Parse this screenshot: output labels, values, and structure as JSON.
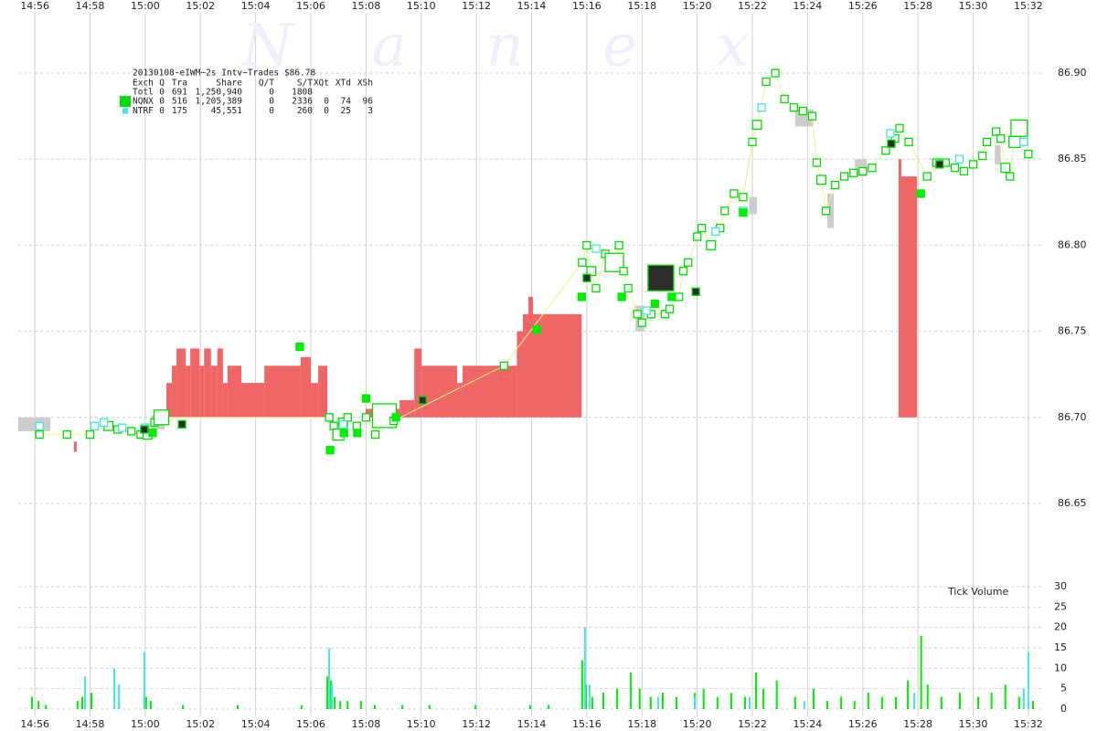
{
  "chart_data": [
    {
      "type": "trades",
      "watermark": "N a n e x",
      "xlim": [
        "14:55:24",
        "15:32:30"
      ],
      "xticks": [
        "14:56",
        "14:58",
        "15:00",
        "15:02",
        "15:04",
        "15:06",
        "15:08",
        "15:10",
        "15:12",
        "15:14",
        "15:16",
        "15:18",
        "15:20",
        "15:22",
        "15:24",
        "15:26",
        "15:28",
        "15:30",
        "15:32"
      ],
      "ylim": [
        86.6,
        86.93
      ],
      "yticks": [
        86.65,
        {
          "value": 86.7,
          "label": "86.70"
        },
        86.75,
        {
          "value": 86.8,
          "label": "86.80"
        },
        86.85,
        {
          "value": 86.9,
          "label": "86.90"
        }
      ],
      "grid": true,
      "info": {
        "title": "20130108-eIWM~2s Intv~Trades $86.78",
        "header": [
          "Exch",
          "Q",
          "Tra",
          "Share",
          "Q/T",
          "S/T",
          "XQt",
          "XTd",
          "XSh"
        ],
        "total": [
          "Totl",
          "0",
          "691",
          "1,250,940",
          "0",
          "1808"
        ]
      },
      "quotes": [
        {
          "color": "#cccccc",
          "x": [
            "14:55:24",
            "14:56:34",
            "15:00:13",
            "15:00:42",
            "15:17:46",
            "15:18:05",
            "15:21:53",
            "15:22:10",
            "15:23:33",
            "15:24:13",
            "15:24:43",
            "15:24:57",
            "15:25:43",
            "15:26:09",
            "15:30:47",
            "15:31:00"
          ],
          "high": [
            86.7,
            null,
            86.701,
            null,
            86.765,
            null,
            86.828,
            null,
            86.879,
            null,
            86.83,
            null,
            86.85,
            null,
            86.858,
            null
          ],
          "low": [
            86.692,
            null,
            86.693,
            null,
            86.75,
            null,
            86.818,
            null,
            86.869,
            null,
            86.81,
            null,
            86.84,
            null,
            86.847,
            null
          ]
        },
        {
          "color": "#f06666",
          "x": [
            "14:57:25",
            "14:57:31",
            "15:00:46",
            "15:00:58",
            "15:01:08",
            "15:01:28",
            "15:01:38",
            "15:01:58",
            "15:02:08",
            "15:02:23",
            "15:02:37",
            "15:02:49",
            "15:02:59",
            "15:03:29",
            "15:04:19",
            "15:05:38",
            "15:06:00",
            "15:06:16",
            "15:06:36",
            "15:07:59",
            "15:09:13",
            "15:09:45",
            "15:10:01",
            "15:11:18",
            "15:11:30",
            "15:13:28",
            "15:13:41",
            "15:13:53",
            "15:14:03",
            "15:15:49",
            "15:27:18",
            "15:27:24",
            "15:27:58"
          ],
          "high": [
            86.686,
            null,
            86.72,
            86.73,
            86.74,
            86.73,
            86.74,
            86.73,
            86.74,
            86.73,
            86.74,
            86.72,
            86.73,
            86.72,
            86.73,
            86.735,
            86.72,
            86.73,
            null,
            86.705,
            86.71,
            86.74,
            86.73,
            86.72,
            86.73,
            86.75,
            86.76,
            86.77,
            86.76,
            null,
            86.85,
            86.84,
            null
          ],
          "low": [
            86.68,
            null,
            86.7,
            86.7,
            86.7,
            86.7,
            86.7,
            86.7,
            86.7,
            86.7,
            86.7,
            86.7,
            86.7,
            86.7,
            86.7,
            86.7,
            86.7,
            86.7,
            null,
            86.7,
            86.7,
            86.7,
            86.7,
            86.7,
            86.7,
            86.7,
            86.7,
            86.7,
            86.7,
            null,
            86.7,
            86.7,
            null
          ]
        }
      ],
      "series": [
        {
          "name": "NQNX",
          "color": "#00dd00",
          "filled": false,
          "line_color": "#f2ee8a",
          "stats": [
            "0",
            "516",
            "1,205,389",
            "0",
            "2336",
            "0",
            "74",
            "96"
          ],
          "x": [
            "14:56:10",
            "14:57:10",
            "14:58:00",
            "14:58:40",
            "14:59:00",
            "14:59:30",
            "14:59:50",
            "15:00:05",
            "15:00:20",
            "15:00:35",
            "15:06:40",
            "15:06:50",
            "15:07:00",
            "15:07:10",
            "15:07:20",
            "15:07:40",
            "15:08:00",
            "15:08:20",
            "15:08:40",
            "15:09:00",
            "15:13:00",
            "15:15:50",
            "15:16:00",
            "15:16:10",
            "15:16:20",
            "15:16:40",
            "15:17:00",
            "15:17:10",
            "15:17:20",
            "15:17:30",
            "15:17:50",
            "15:18:00",
            "15:18:20",
            "15:18:50",
            "15:19:00",
            "15:19:20",
            "15:19:30",
            "15:19:40",
            "15:20:00",
            "15:20:10",
            "15:20:30",
            "15:20:50",
            "15:21:00",
            "15:21:20",
            "15:21:40",
            "15:22:00",
            "15:22:10",
            "15:22:30",
            "15:22:50",
            "15:23:10",
            "15:23:30",
            "15:23:50",
            "15:24:10",
            "15:24:20",
            "15:24:30",
            "15:24:40",
            "15:25:00",
            "15:25:20",
            "15:25:40",
            "15:26:00",
            "15:26:20",
            "15:26:50",
            "15:27:10",
            "15:27:20",
            "15:27:40",
            "15:28:20",
            "15:28:40",
            "15:29:00",
            "15:29:20",
            "15:29:40",
            "15:30:00",
            "15:30:20",
            "15:30:30",
            "15:30:50",
            "15:31:00",
            "15:31:10",
            "15:31:20",
            "15:31:30",
            "15:31:40",
            "15:32:00"
          ],
          "values": [
            86.69,
            86.69,
            86.69,
            86.695,
            86.693,
            86.692,
            86.69,
            86.69,
            86.697,
            86.7,
            86.7,
            86.695,
            86.69,
            86.697,
            86.7,
            86.695,
            86.7,
            86.69,
            86.701,
            86.698,
            86.73,
            86.79,
            86.8,
            86.785,
            86.775,
            86.795,
            86.79,
            86.8,
            86.785,
            86.775,
            86.76,
            86.755,
            86.76,
            86.76,
            86.763,
            86.77,
            86.785,
            86.79,
            86.805,
            86.81,
            86.8,
            86.81,
            86.82,
            86.83,
            86.828,
            86.86,
            86.87,
            86.895,
            86.9,
            86.885,
            86.88,
            86.878,
            86.875,
            86.848,
            86.838,
            86.82,
            86.835,
            86.84,
            86.842,
            86.843,
            86.845,
            86.855,
            86.862,
            86.868,
            86.86,
            86.84,
            86.848,
            86.848,
            86.845,
            86.843,
            86.847,
            86.852,
            86.86,
            86.866,
            86.862,
            86.845,
            86.84,
            86.86,
            86.868,
            86.853
          ],
          "sizes": [
            100,
            100,
            100,
            200,
            100,
            100,
            100,
            200,
            100,
            900,
            100,
            100,
            400,
            200,
            100,
            100,
            100,
            100,
            3000,
            100,
            100,
            100,
            100,
            200,
            100,
            100,
            1600,
            100,
            100,
            100,
            100,
            100,
            100,
            100,
            100,
            100,
            100,
            100,
            100,
            100,
            200,
            100,
            100,
            100,
            100,
            100,
            200,
            100,
            100,
            100,
            100,
            100,
            100,
            100,
            200,
            100,
            100,
            100,
            100,
            100,
            100,
            100,
            100,
            100,
            100,
            100,
            100,
            100,
            100,
            100,
            100,
            100,
            100,
            100,
            100,
            200,
            100,
            400,
            1200,
            100
          ]
        },
        {
          "name": "NTRF",
          "color": "#44e4e4",
          "filled": false,
          "stats": [
            "0",
            "175",
            "45,551",
            "0",
            "260",
            "0",
            "25",
            "3"
          ],
          "x": [
            "14:56:10",
            "14:58:10",
            "14:58:30",
            "14:59:10",
            "15:00:00",
            "15:07:10",
            "15:16:20",
            "15:18:10",
            "15:20:40",
            "15:21:40",
            "15:22:20",
            "15:27:00",
            "15:29:30",
            "15:31:50"
          ],
          "values": [
            86.695,
            86.695,
            86.697,
            86.694,
            86.694,
            86.696,
            86.798,
            86.762,
            86.808,
            86.82,
            86.88,
            86.865,
            86.85,
            86.86
          ],
          "sizes": [
            100,
            100,
            100,
            100,
            100,
            100,
            100,
            100,
            100,
            100,
            100,
            100,
            100,
            100
          ]
        },
        {
          "color": "#00ee00",
          "filled": true,
          "x": [
            "15:00:16",
            "15:05:36",
            "15:06:42",
            "15:07:12",
            "15:07:41",
            "15:08:00",
            "15:09:05",
            "15:14:11",
            "15:15:49",
            "15:17:16",
            "15:18:28",
            "15:19:05",
            "15:21:40",
            "15:28:06"
          ],
          "values": [
            86.691,
            86.741,
            86.681,
            86.691,
            86.691,
            86.711,
            86.7,
            86.751,
            86.77,
            86.77,
            86.766,
            86.77,
            86.819,
            86.83
          ],
          "sizes": [
            100,
            100,
            100,
            100,
            100,
            100,
            100,
            100,
            100,
            100,
            100,
            100,
            100,
            100
          ]
        },
        {
          "color": "#2c2c2c",
          "edge": "#00dd00",
          "filled": true,
          "x": [
            "14:59:58",
            "15:01:20",
            "15:10:03",
            "15:16:00",
            "15:18:41",
            "15:19:57",
            "15:27:02",
            "15:28:47"
          ],
          "values": [
            86.693,
            86.696,
            86.71,
            86.781,
            86.781,
            86.773,
            86.859,
            86.847
          ],
          "sizes": [
            100,
            100,
            100,
            100,
            3600,
            100,
            100,
            100
          ]
        }
      ]
    },
    {
      "type": "bar",
      "title": "Tick Volume",
      "xlim": [
        "14:55:24",
        "15:32:30"
      ],
      "xticks": [
        "14:56",
        "14:58",
        "15:00",
        "15:02",
        "15:04",
        "15:06",
        "15:08",
        "15:10",
        "15:12",
        "15:14",
        "15:16",
        "15:18",
        "15:20",
        "15:22",
        "15:24",
        "15:26",
        "15:28",
        "15:30",
        "15:32"
      ],
      "ylim": [
        0,
        30
      ],
      "yticks": [
        0,
        5,
        10,
        15,
        20,
        25,
        30
      ],
      "grid": true,
      "series": [
        {
          "color": "#00ee00",
          "x": [
            "14:55:54",
            "14:56:08",
            "14:56:24",
            "14:57:33",
            "14:57:43",
            "14:58:03",
            "14:59:03",
            "15:00:02",
            "15:00:12",
            "15:01:22",
            "15:03:21",
            "15:05:40",
            "15:06:36",
            "15:06:44",
            "15:06:52",
            "15:07:04",
            "15:07:20",
            "15:07:49",
            "15:08:19",
            "15:09:19",
            "15:10:18",
            "15:11:58",
            "15:13:57",
            "15:14:37",
            "15:15:50",
            "15:15:58",
            "15:16:12",
            "15:16:36",
            "15:17:06",
            "15:17:36",
            "15:17:55",
            "15:18:19",
            "15:18:45",
            "15:19:15",
            "15:19:55",
            "15:20:14",
            "15:20:44",
            "15:21:14",
            "15:21:44",
            "15:22:08",
            "15:22:24",
            "15:22:53",
            "15:23:33",
            "15:24:13",
            "15:24:43",
            "15:25:13",
            "15:25:42",
            "15:26:12",
            "15:26:42",
            "15:27:12",
            "15:27:38",
            "15:28:07",
            "15:28:21",
            "15:28:51",
            "15:29:31",
            "15:30:11",
            "15:30:40",
            "15:31:10",
            "15:31:40",
            "15:32:10"
          ],
          "values": [
            3,
            2,
            1,
            2,
            3,
            4,
            2,
            3,
            2,
            1,
            1,
            1,
            8,
            7,
            3,
            2,
            2,
            2,
            1,
            1,
            1,
            1,
            1,
            1,
            12,
            6,
            3,
            4,
            5,
            9,
            5,
            3,
            4,
            3,
            4,
            5,
            3,
            4,
            3,
            9,
            5,
            7,
            3,
            5,
            2,
            3,
            2,
            4,
            3,
            3,
            7,
            18,
            6,
            3,
            4,
            3,
            4,
            6,
            3,
            2
          ]
        },
        {
          "color": "#44e4e4",
          "x": [
            "14:57:49",
            "14:58:53",
            "14:59:03",
            "14:59:58",
            "15:06:40",
            "15:06:46",
            "15:15:56",
            "15:16:06",
            "15:18:35",
            "15:19:55",
            "15:21:54",
            "15:23:53",
            "15:27:52",
            "15:31:50",
            "15:32:00"
          ],
          "values": [
            8,
            10,
            6,
            14,
            15,
            6,
            20,
            6,
            3,
            3,
            3,
            2,
            4,
            5,
            14
          ]
        }
      ]
    }
  ]
}
